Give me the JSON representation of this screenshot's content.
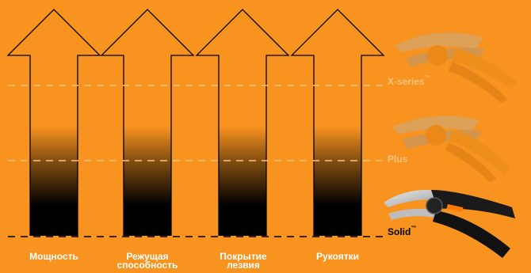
{
  "tiers": {
    "x_series": {
      "name": "X-series",
      "mark": "™"
    },
    "plus": {
      "name": "Plus"
    },
    "solid": {
      "name": "Solid",
      "mark": "™"
    }
  },
  "columns": [
    {
      "label": "Мощность"
    },
    {
      "label": "Режущая способность"
    },
    {
      "label": "Покрытие лезвия"
    },
    {
      "label": "Рукоятки"
    }
  ],
  "colors": {
    "background": "#f7931e",
    "fill": "#000000",
    "tier_line": "#f9c17f",
    "base_line": "#000000",
    "label_text": "#ffffff",
    "faded_tier_text": "#f9c17f"
  },
  "icons": [
    "pruner-x-series-icon",
    "pruner-plus-icon",
    "pruner-solid-icon"
  ]
}
